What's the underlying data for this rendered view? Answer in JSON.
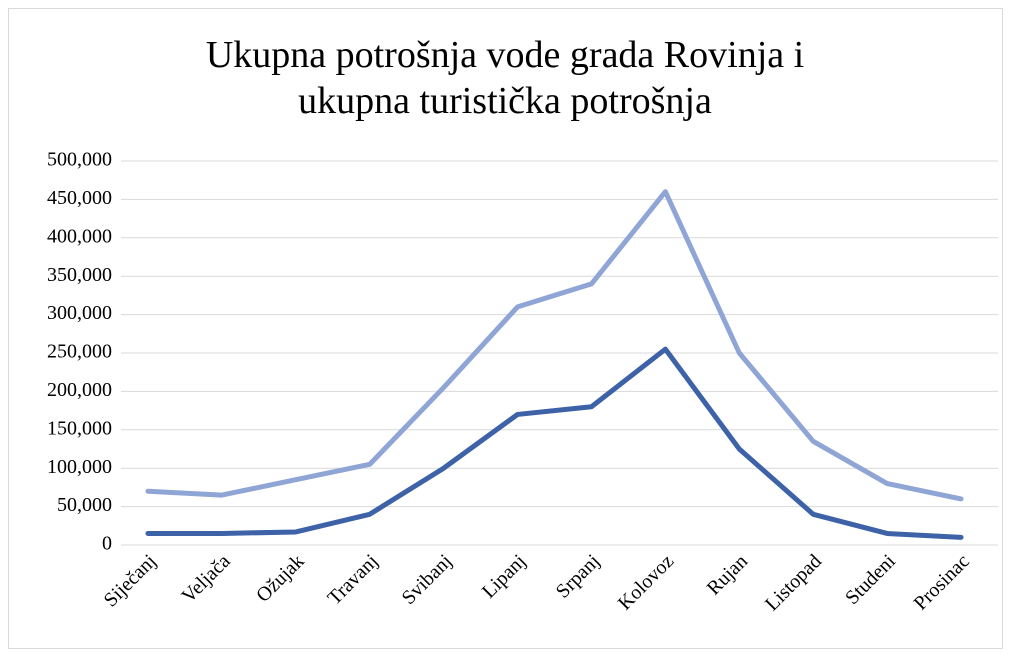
{
  "chart_data": {
    "type": "line",
    "title": "Ukupna potrošnja vode grada Rovinja i ukupna turistička potrošnja",
    "categories": [
      "Siječanj",
      "Veljača",
      "Ožujak",
      "Travanj",
      "Svibanj",
      "Lipanj",
      "Srpanj",
      "Kolovoz",
      "Rujan",
      "Listopad",
      "Studeni",
      "Prosinac"
    ],
    "series": [
      {
        "color": "#8fa5d5",
        "values": [
          70000,
          65000,
          85000,
          105000,
          205000,
          310000,
          340000,
          460000,
          250000,
          135000,
          80000,
          60000
        ]
      },
      {
        "color": "#3d62a8",
        "values": [
          15000,
          15000,
          17000,
          40000,
          100000,
          170000,
          180000,
          255000,
          125000,
          40000,
          15000,
          10000
        ]
      }
    ],
    "ylim": [
      0,
      500000
    ],
    "yticks": [
      0,
      {
        "value": 50000,
        "label": "50,000"
      },
      {
        "value": 100000,
        "label": "100,000"
      },
      {
        "value": 150000,
        "label": "150,000"
      },
      {
        "value": 200000,
        "label": "200,000"
      },
      {
        "value": 250000,
        "label": "250,000"
      },
      {
        "value": 300000,
        "label": "300,000"
      },
      {
        "value": 350000,
        "label": "350,000"
      },
      {
        "value": 400000,
        "label": "400,000"
      },
      {
        "value": 450000,
        "label": "450,000"
      },
      {
        "value": 500000,
        "label": "500,000"
      }
    ],
    "grid": true
  }
}
